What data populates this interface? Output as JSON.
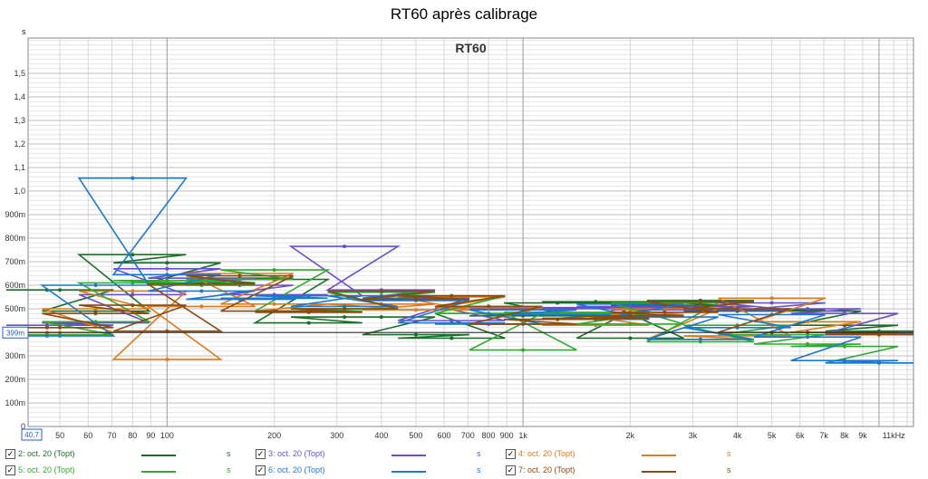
{
  "window": {
    "title": "RT60 après calibrage"
  },
  "chart_data": {
    "type": "line",
    "title": "RT60",
    "ylabel": "s",
    "cursor_value": "399m",
    "x_start_label": "40,7",
    "x_scale": "log",
    "xlim": [
      40.7,
      12500
    ],
    "ylim": [
      0,
      1.65
    ],
    "grid": true,
    "y_ticks": [
      {
        "v": 0,
        "label": "0"
      },
      {
        "v": 0.1,
        "label": "100m"
      },
      {
        "v": 0.2,
        "label": "200m"
      },
      {
        "v": 0.3,
        "label": "300m"
      },
      {
        "v": 0.4,
        "label": ""
      },
      {
        "v": 0.5,
        "label": "500m"
      },
      {
        "v": 0.6,
        "label": "600m"
      },
      {
        "v": 0.7,
        "label": "700m"
      },
      {
        "v": 0.8,
        "label": "800m"
      },
      {
        "v": 0.9,
        "label": "900m"
      },
      {
        "v": 1.0,
        "label": "1,0"
      },
      {
        "v": 1.1,
        "label": "1,1"
      },
      {
        "v": 1.2,
        "label": "1,2"
      },
      {
        "v": 1.3,
        "label": "1,3"
      },
      {
        "v": 1.4,
        "label": "1,4"
      },
      {
        "v": 1.5,
        "label": "1,5"
      }
    ],
    "x_ticks": [
      {
        "v": 50,
        "label": "50"
      },
      {
        "v": 60,
        "label": "60"
      },
      {
        "v": 70,
        "label": "70"
      },
      {
        "v": 80,
        "label": "80"
      },
      {
        "v": 90,
        "label": "90"
      },
      {
        "v": 100,
        "label": "100"
      },
      {
        "v": 200,
        "label": "200"
      },
      {
        "v": 300,
        "label": "300"
      },
      {
        "v": 400,
        "label": "400"
      },
      {
        "v": 500,
        "label": "500"
      },
      {
        "v": 600,
        "label": "600"
      },
      {
        "v": 700,
        "label": "700"
      },
      {
        "v": 800,
        "label": "800"
      },
      {
        "v": 900,
        "label": "900"
      },
      {
        "v": 1000,
        "label": "1k"
      },
      {
        "v": 2000,
        "label": "2k"
      },
      {
        "v": 3000,
        "label": "3k"
      },
      {
        "v": 4000,
        "label": "4k"
      },
      {
        "v": 5000,
        "label": "5k"
      },
      {
        "v": 6000,
        "label": "6k"
      },
      {
        "v": 7000,
        "label": "7k"
      },
      {
        "v": 8000,
        "label": "8k"
      },
      {
        "v": 9000,
        "label": "9k"
      },
      {
        "v": 11000,
        "label": "11kHz"
      }
    ],
    "bands_hz": [
      40,
      50,
      63,
      80,
      100,
      125,
      160,
      200,
      250,
      315,
      400,
      500,
      630,
      800,
      1000,
      1250,
      1600,
      2000,
      2500,
      3150,
      4000,
      5000,
      6300,
      8000,
      10000
    ],
    "series": [
      {
        "name": "2: oct. 20 (Topt)",
        "color": "#1a6e2a",
        "values": [
          0.58,
          0.58,
          0.49,
          0.73,
          0.695,
          0.61,
          0.63,
          0.625,
          0.44,
          0.465,
          0.465,
          0.39,
          0.375,
          0.48,
          0.47,
          0.525,
          0.53,
          0.375,
          0.515,
          0.535,
          0.49,
          0.495,
          0.49,
          0.43,
          0.405
        ]
      },
      {
        "name": "3: oct. 20 (Topt)",
        "color": "#6a4fc8",
        "values": [
          0.43,
          0.43,
          0.44,
          0.56,
          0.67,
          0.63,
          0.6,
          0.56,
          0.555,
          0.765,
          0.58,
          0.545,
          0.45,
          0.51,
          0.5,
          0.5,
          0.505,
          0.51,
          0.495,
          0.51,
          0.495,
          0.525,
          0.5,
          0.48,
          0.395
        ]
      },
      {
        "name": "4: oct. 20 (Topt)",
        "color": "#e07a1a",
        "values": [
          0.4,
          0.4,
          0.5,
          0.575,
          0.285,
          0.51,
          0.65,
          0.52,
          0.49,
          0.5,
          0.52,
          0.495,
          0.55,
          0.505,
          0.435,
          0.435,
          0.43,
          0.475,
          0.5,
          0.37,
          0.385,
          0.545,
          0.445,
          0.4,
          0.39
        ]
      },
      {
        "name": "5: oct. 20 (Topt)",
        "color": "#2faa2f",
        "values": [
          0.39,
          0.39,
          0.445,
          0.61,
          0.62,
          0.6,
          0.625,
          0.665,
          0.49,
          0.5,
          0.57,
          0.54,
          0.555,
          0.48,
          0.325,
          0.485,
          0.48,
          0.435,
          0.525,
          0.36,
          0.43,
          0.39,
          0.35,
          0.34,
          0.27
        ]
      },
      {
        "name": "6: oct. 20 (Topt)",
        "color": "#1a78d0",
        "values": [
          0.385,
          0.385,
          0.6,
          1.055,
          0.645,
          0.575,
          0.54,
          0.545,
          0.555,
          0.51,
          0.555,
          0.535,
          0.44,
          0.435,
          0.495,
          0.475,
          0.455,
          0.52,
          0.465,
          0.37,
          0.42,
          0.475,
          0.38,
          0.28,
          0.27
        ]
      },
      {
        "name": "7: oct. 20 (Topt)",
        "color": "#8a4a10",
        "values": [
          0.42,
          0.42,
          0.48,
          0.515,
          0.405,
          0.605,
          0.64,
          0.49,
          0.485,
          0.5,
          0.575,
          0.54,
          0.555,
          0.51,
          0.435,
          0.455,
          0.46,
          0.47,
          0.485,
          0.53,
          0.5,
          0.4,
          0.4,
          0.4,
          0.39
        ]
      }
    ]
  },
  "legend": {
    "unit": "s",
    "checkbox_mark": "✓",
    "items": [
      {
        "label": "2: oct. 20 (Topt)",
        "color": "#1a6e2a"
      },
      {
        "label": "3: oct. 20 (Topt)",
        "color": "#6a4fc8"
      },
      {
        "label": "4: oct. 20 (Topt)",
        "color": "#e07a1a"
      },
      {
        "label": "5: oct. 20 (Topt)",
        "color": "#2faa2f"
      },
      {
        "label": "6: oct. 20 (Topt)",
        "color": "#1a78d0"
      },
      {
        "label": "7: oct. 20 (Topt)",
        "color": "#8a4a10"
      }
    ]
  }
}
